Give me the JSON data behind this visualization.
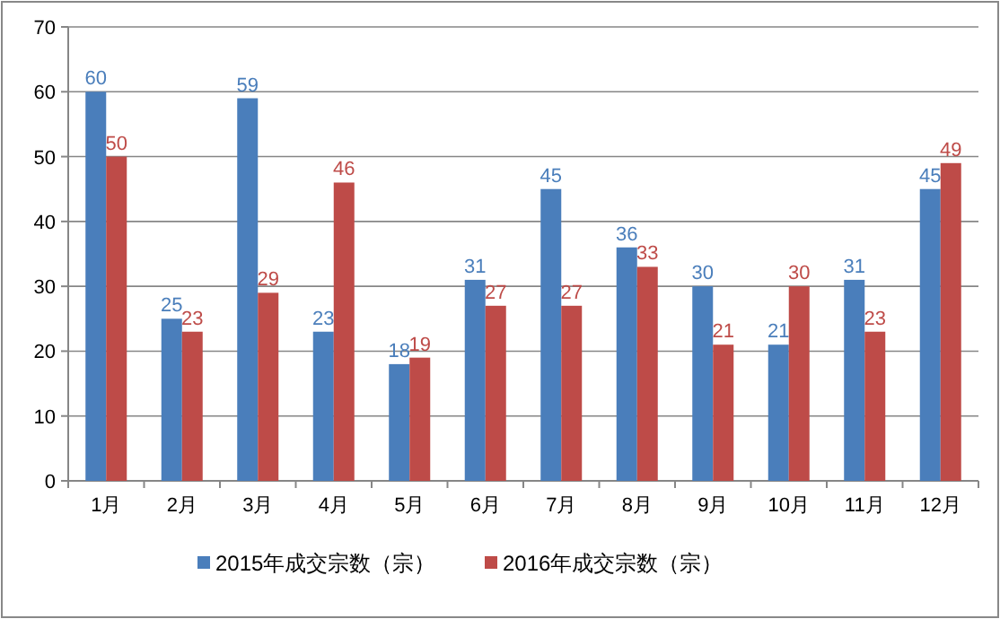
{
  "chart_data": {
    "type": "bar",
    "categories": [
      "1月",
      "2月",
      "3月",
      "4月",
      "5月",
      "6月",
      "7月",
      "8月",
      "9月",
      "10月",
      "11月",
      "12月"
    ],
    "series": [
      {
        "name": "2015年成交宗数（宗）",
        "color": "#4a7ebb",
        "values": [
          60,
          25,
          59,
          23,
          18,
          31,
          45,
          36,
          30,
          21,
          31,
          45
        ]
      },
      {
        "name": "2016年成交宗数（宗）",
        "color": "#be4b48",
        "values": [
          50,
          23,
          29,
          46,
          19,
          27,
          27,
          33,
          21,
          30,
          23,
          49
        ]
      }
    ],
    "ylim": [
      0,
      70
    ],
    "yticks": [
      0,
      10,
      20,
      30,
      40,
      50,
      60,
      70
    ],
    "grid": "y",
    "legend": "bottom",
    "data_labels": true
  }
}
